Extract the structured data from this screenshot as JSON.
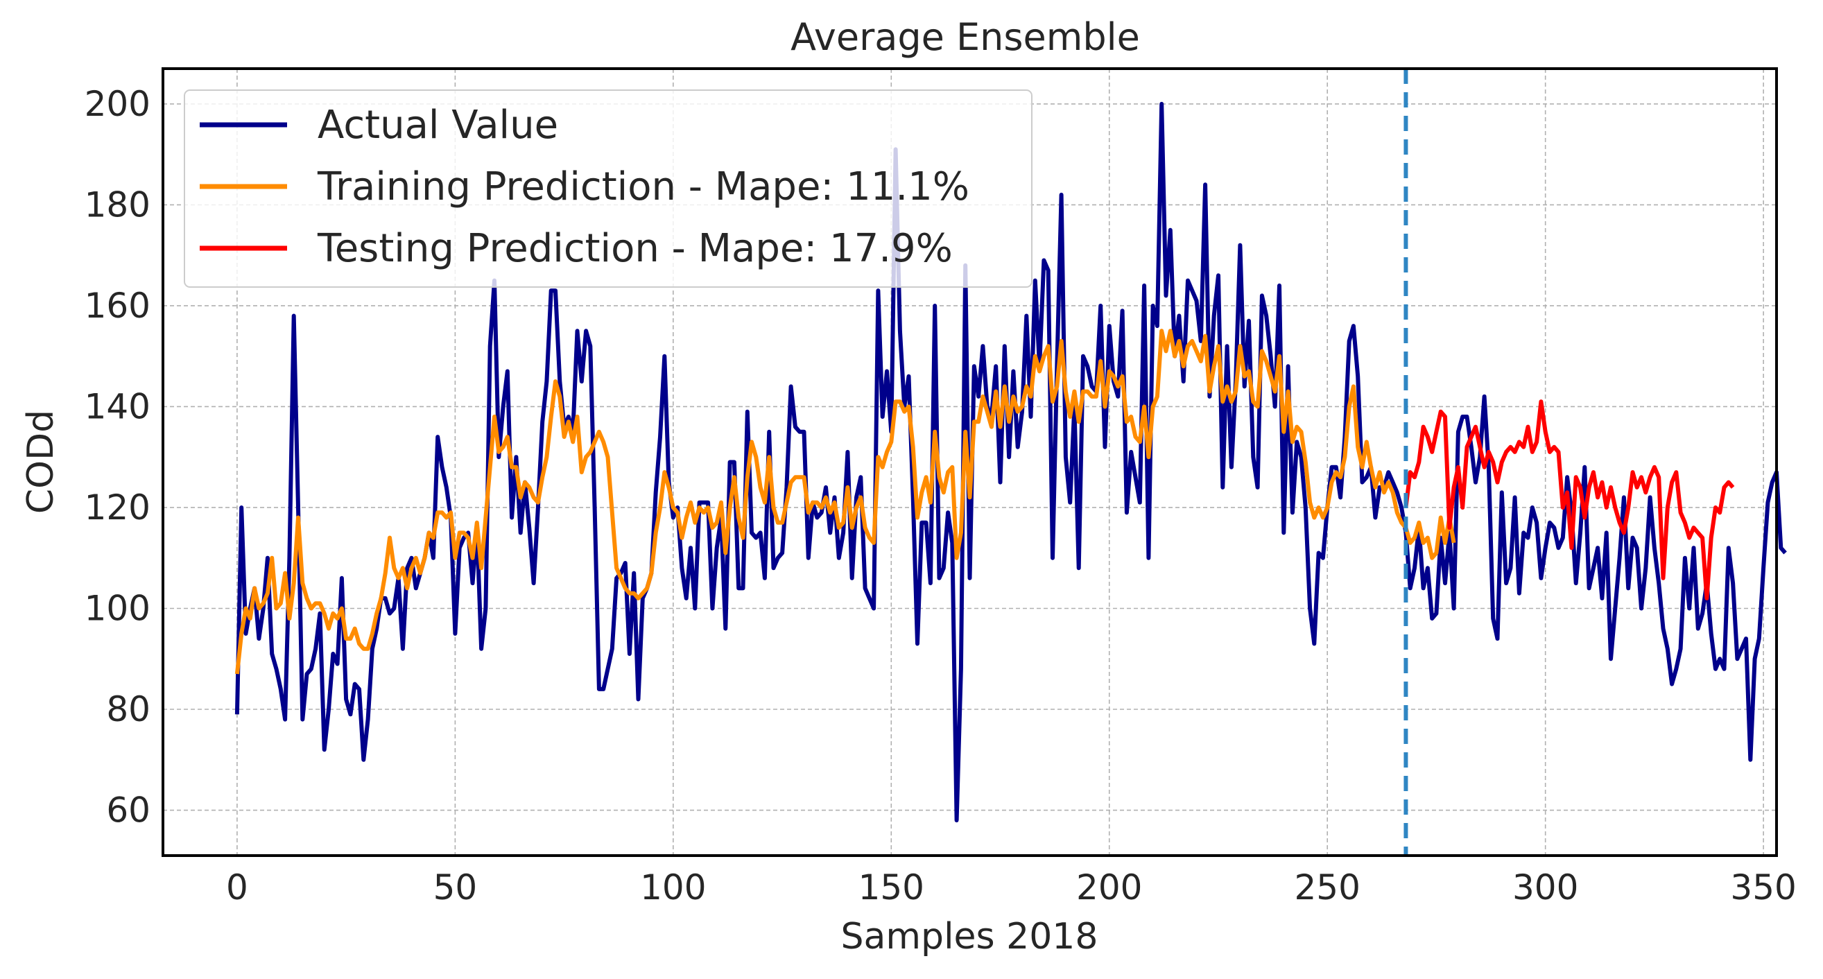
{
  "chart_data": {
    "type": "line",
    "title": "Average Ensemble",
    "xlabel": "Samples 2018",
    "ylabel": "CODd",
    "xlim": [
      -17,
      353
    ],
    "ylim": [
      51,
      207
    ],
    "xticks": [
      0,
      50,
      100,
      150,
      200,
      250,
      300,
      350
    ],
    "yticks": [
      60,
      80,
      100,
      120,
      140,
      160,
      180,
      200
    ],
    "grid": true,
    "legend_position": "top-left",
    "split_index": 268,
    "split_line_color": "#2f86c3",
    "series": [
      {
        "name": "Actual Value",
        "color": "#00008b",
        "x_start": 0,
        "values": [
          79,
          120,
          95,
          100,
          104,
          94,
          100,
          110,
          91,
          88,
          84,
          78,
          110,
          158,
          120,
          78,
          87,
          88,
          92,
          99,
          72,
          80,
          91,
          89,
          106,
          82,
          79,
          85,
          84,
          70,
          78,
          92,
          96,
          102,
          102,
          99,
          100,
          106,
          92,
          108,
          110,
          104,
          107,
          110,
          115,
          110,
          134,
          128,
          124,
          118,
          95,
          112,
          114,
          115,
          105,
          116,
          92,
          100,
          152,
          165,
          130,
          140,
          147,
          118,
          130,
          115,
          125,
          116,
          105,
          120,
          137,
          145,
          163,
          163,
          145,
          136,
          138,
          135,
          155,
          145,
          155,
          152,
          120,
          84,
          84,
          88,
          92,
          106,
          107,
          109,
          91,
          107,
          82,
          102,
          104,
          107,
          123,
          134,
          150,
          125,
          118,
          120,
          108,
          102,
          112,
          100,
          121,
          121,
          121,
          100,
          112,
          118,
          96,
          129,
          129,
          104,
          104,
          139,
          115,
          114,
          115,
          106,
          135,
          108,
          110,
          111,
          124,
          144,
          136,
          135,
          135,
          110,
          121,
          118,
          119,
          124,
          115,
          122,
          110,
          115,
          131,
          106,
          122,
          126,
          104,
          102,
          100,
          163,
          138,
          147,
          135,
          191,
          155,
          140,
          146,
          122,
          93,
          117,
          117,
          105,
          160,
          106,
          108,
          119,
          113,
          58,
          88,
          168,
          106,
          148,
          142,
          152,
          140,
          138,
          148,
          125,
          152,
          130,
          147,
          132,
          139,
          158,
          138,
          165,
          148,
          169,
          167,
          110,
          148,
          182,
          130,
          121,
          140,
          108,
          150,
          148,
          144,
          143,
          160,
          132,
          156,
          145,
          142,
          159,
          119,
          131,
          126,
          121,
          164,
          110,
          160,
          156,
          200,
          162,
          175,
          150,
          158,
          145,
          165,
          163,
          161,
          153,
          184,
          142,
          158,
          166,
          124,
          152,
          128,
          145,
          172,
          144,
          157,
          130,
          124,
          162,
          158,
          150,
          140,
          164,
          115,
          148,
          119,
          133,
          130,
          120,
          100,
          93,
          111,
          110,
          120,
          128,
          128,
          122,
          134,
          153,
          156,
          146,
          125,
          126,
          128,
          118,
          124,
          124,
          127,
          125,
          123,
          120,
          115,
          104,
          108,
          116,
          104,
          108,
          98,
          99,
          114,
          105,
          115,
          100,
          135,
          138,
          138,
          132,
          125,
          130,
          142,
          128,
          98,
          94,
          123,
          105,
          108,
          122,
          103,
          115,
          114,
          120,
          117,
          106,
          112,
          117,
          116,
          112,
          114,
          126,
          119,
          105,
          115,
          128,
          104,
          108,
          112,
          102,
          115,
          90,
          100,
          110,
          122,
          104,
          114,
          112,
          100,
          108,
          122,
          112,
          105,
          96,
          92,
          85,
          88,
          92,
          110,
          100,
          112,
          96,
          99,
          105,
          95,
          88,
          90,
          88,
          112,
          105,
          90,
          92,
          94,
          70,
          90,
          94,
          108,
          121,
          125,
          127,
          112,
          111
        ]
      },
      {
        "name": "Training Prediction - Mape: 11.1%",
        "color": "#ff8c00",
        "x_start": 0,
        "values": [
          87,
          95,
          100,
          98,
          104,
          100,
          101,
          103,
          110,
          100,
          101,
          107,
          98,
          105,
          118,
          105,
          102,
          100,
          101,
          101,
          99,
          96,
          99,
          98,
          100,
          94,
          94,
          96,
          93,
          92,
          92,
          95,
          99,
          102,
          107,
          114,
          108,
          106,
          108,
          104,
          108,
          110,
          107,
          110,
          115,
          114,
          119,
          119,
          118,
          119,
          110,
          115,
          115,
          114,
          110,
          117,
          108,
          118,
          128,
          138,
          131,
          132,
          134,
          128,
          128,
          122,
          125,
          124,
          122,
          121,
          126,
          130,
          138,
          145,
          142,
          134,
          137,
          133,
          138,
          127,
          130,
          131,
          133,
          135,
          133,
          130,
          119,
          108,
          106,
          104,
          103,
          103,
          102,
          103,
          104,
          107,
          115,
          120,
          127,
          124,
          120,
          119,
          114,
          118,
          121,
          117,
          120,
          119,
          120,
          116,
          117,
          121,
          111,
          120,
          126,
          118,
          114,
          126,
          133,
          130,
          124,
          121,
          130,
          120,
          117,
          117,
          121,
          125,
          126,
          126,
          126,
          119,
          121,
          121,
          120,
          122,
          119,
          121,
          116,
          117,
          124,
          116,
          120,
          122,
          116,
          114,
          113,
          130,
          128,
          131,
          133,
          141,
          141,
          139,
          140,
          132,
          118,
          123,
          126,
          121,
          135,
          126,
          123,
          127,
          128,
          110,
          115,
          135,
          122,
          137,
          137,
          142,
          139,
          136,
          143,
          136,
          144,
          137,
          142,
          139,
          140,
          144,
          142,
          150,
          147,
          150,
          152,
          141,
          144,
          153,
          143,
          138,
          143,
          137,
          143,
          143,
          142,
          142,
          149,
          140,
          147,
          146,
          144,
          146,
          137,
          138,
          134,
          133,
          140,
          130,
          140,
          142,
          155,
          151,
          155,
          150,
          153,
          148,
          152,
          153,
          151,
          149,
          154,
          143,
          148,
          152,
          141,
          144,
          141,
          143,
          152,
          146,
          147,
          141,
          140,
          151,
          149,
          146,
          143,
          150,
          135,
          143,
          133,
          136,
          135,
          129,
          121,
          118,
          120,
          118,
          120,
          125,
          127,
          126,
          130,
          140,
          144,
          132,
          128,
          133,
          128,
          124,
          127,
          123,
          125,
          123,
          119,
          117,
          116,
          113,
          114,
          117,
          113,
          114,
          110,
          111,
          118,
          113,
          118,
          113
        ]
      },
      {
        "name": "Testing Prediction - Mape: 17.9%",
        "color": "#ff0000",
        "x_start": 268,
        "values": [
          120,
          127,
          126,
          129,
          136,
          134,
          131,
          135,
          139,
          138,
          116,
          124,
          128,
          120,
          132,
          134,
          136,
          132,
          128,
          131,
          129,
          125,
          129,
          131,
          132,
          131,
          133,
          132,
          136,
          131,
          133,
          141,
          135,
          131,
          132,
          131,
          120,
          123,
          112,
          126,
          124,
          118,
          124,
          127,
          122,
          125,
          120,
          124,
          120,
          117,
          115,
          120,
          127,
          124,
          126,
          123,
          126,
          128,
          126,
          106,
          120,
          125,
          127,
          119,
          117,
          114,
          116,
          115,
          114,
          102,
          114,
          120,
          119,
          124,
          125,
          124
        ]
      }
    ]
  }
}
